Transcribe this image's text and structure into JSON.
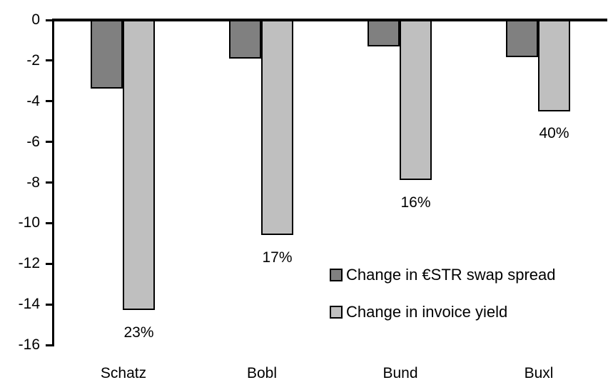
{
  "chart_data": {
    "type": "bar",
    "title": "",
    "xlabel": "",
    "ylabel": "",
    "categories": [
      "Schatz",
      "Bobl",
      "Bund",
      "Buxl"
    ],
    "series": [
      {
        "name": "Change in €STR swap spread",
        "color": "#808080",
        "values": [
          -3.3,
          -1.8,
          -1.2,
          -1.75
        ]
      },
      {
        "name": "Change in invoice yield",
        "color": "#bfbfbf",
        "values": [
          -14.2,
          -10.5,
          -7.8,
          -4.4
        ]
      }
    ],
    "bar_labels": {
      "labeled_series": "Change in invoice yield",
      "values": [
        "23%",
        "17%",
        "16%",
        "40%"
      ]
    },
    "ylim": [
      -16,
      0
    ],
    "yticks": [
      0,
      -2,
      -4,
      -6,
      -8,
      -10,
      -12,
      -14,
      -16
    ],
    "grid": false,
    "legend_position": "inside-bottom-right",
    "colors": {
      "axis": "#000000",
      "bar_border": "#000000",
      "background": "#ffffff",
      "text": "#000000"
    }
  }
}
